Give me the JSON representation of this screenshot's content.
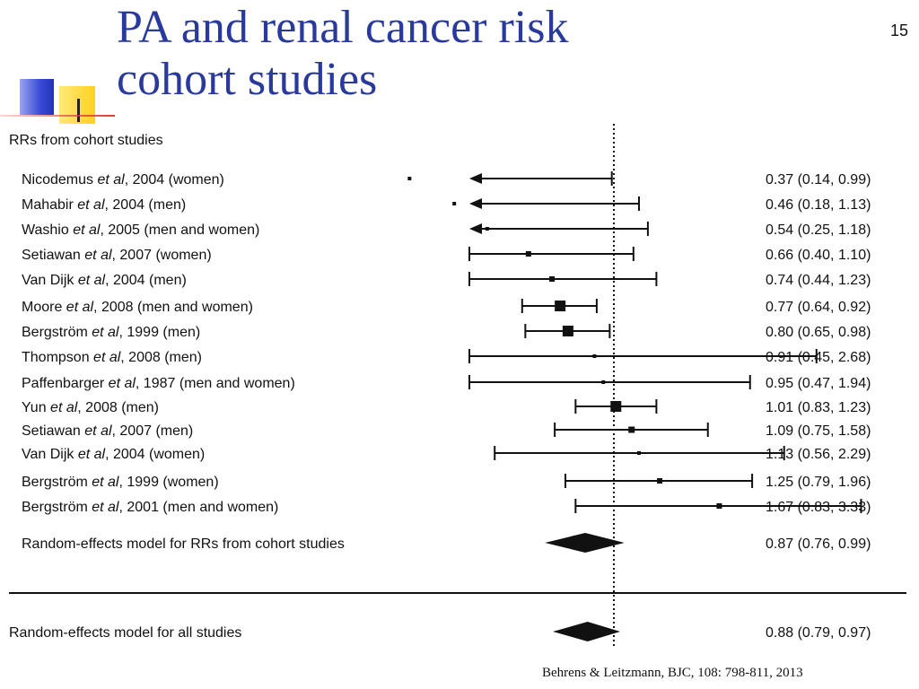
{
  "slide": {
    "title_line1": "PA and renal cancer risk",
    "title_line2": "cohort studies",
    "number": "15",
    "citation": "Behrens & Leitzmann, BJC, 108: 798-811, 2013"
  },
  "chart_data": {
    "type": "forest",
    "title": "RRs from cohort studies",
    "reference_line": 1.0,
    "xscale": "log",
    "studies": [
      {
        "author": "Nicodemus",
        "year": "2004",
        "group": "(women)",
        "rr": 0.37,
        "lo": 0.14,
        "hi": 0.99,
        "label": "0.37 (0.14, 0.99)",
        "weight": 1,
        "arrow_left": true
      },
      {
        "author": "Mahabir",
        "year": "2004",
        "group": "(men)",
        "rr": 0.46,
        "lo": 0.18,
        "hi": 1.13,
        "label": "0.46 (0.18, 1.13)",
        "weight": 1,
        "arrow_left": true
      },
      {
        "author": "Washio",
        "year": "2005",
        "group": "(men and women)",
        "rr": 0.54,
        "lo": 0.25,
        "hi": 1.18,
        "label": "0.54 (0.25, 1.18)",
        "weight": 1,
        "arrow_left": true
      },
      {
        "author": "Setiawan",
        "year": "2007",
        "group": "(women)",
        "rr": 0.66,
        "lo": 0.4,
        "hi": 1.1,
        "label": "0.66 (0.40, 1.10)",
        "weight": 2,
        "arrow_left": false
      },
      {
        "author": "Van Dijk",
        "year": "2004",
        "group": "(men)",
        "rr": 0.74,
        "lo": 0.44,
        "hi": 1.23,
        "label": "0.74 (0.44, 1.23)",
        "weight": 2,
        "arrow_left": false
      },
      {
        "author": "Moore",
        "year": "2008",
        "group": "(men and women)",
        "rr": 0.77,
        "lo": 0.64,
        "hi": 0.92,
        "label": "0.77 (0.64, 0.92)",
        "weight": 5,
        "arrow_left": false
      },
      {
        "author": "Bergström",
        "year": "1999",
        "group": "(men)",
        "rr": 0.8,
        "lo": 0.65,
        "hi": 0.98,
        "label": "0.80 (0.65, 0.98)",
        "weight": 5,
        "arrow_left": false
      },
      {
        "author": "Thompson",
        "year": "2008",
        "group": "(men)",
        "rr": 0.91,
        "lo": 0.45,
        "hi": 2.68,
        "label": "0.91 (0.45, 2.68)",
        "weight": 1,
        "arrow_left": false
      },
      {
        "author": "Paffenbarger",
        "year": "1987",
        "group": "(men and women)",
        "rr": 0.95,
        "lo": 0.47,
        "hi": 1.94,
        "label": "0.95 (0.47, 1.94)",
        "weight": 1,
        "arrow_left": false
      },
      {
        "author": "Yun",
        "year": "2008",
        "group": "(men)",
        "rr": 1.01,
        "lo": 0.83,
        "hi": 1.23,
        "label": "1.01 (0.83, 1.23)",
        "weight": 5,
        "arrow_left": false
      },
      {
        "author": "Setiawan",
        "year": "2007",
        "group": "(men)",
        "rr": 1.09,
        "lo": 0.75,
        "hi": 1.58,
        "label": "1.09 (0.75, 1.58)",
        "weight": 3,
        "arrow_left": false
      },
      {
        "author": "Van Dijk",
        "year": "2004",
        "group": "(women)",
        "rr": 1.13,
        "lo": 0.56,
        "hi": 2.29,
        "label": "1.13 (0.56, 2.29)",
        "weight": 1,
        "arrow_left": false
      },
      {
        "author": "Bergström",
        "year": "1999",
        "group": "(women)",
        "rr": 1.25,
        "lo": 0.79,
        "hi": 1.96,
        "label": "1.25 (0.79, 1.96)",
        "weight": 2,
        "arrow_left": false
      },
      {
        "author": "Bergström",
        "year": "2001",
        "group": "(men and women)",
        "rr": 1.67,
        "lo": 0.83,
        "hi": 3.33,
        "label": "1.67 (0.83, 3.33)",
        "weight": 2,
        "arrow_left": false
      }
    ],
    "pooled": [
      {
        "name": "Random-effects model for RRs from cohort studies",
        "rr": 0.87,
        "lo": 0.76,
        "hi": 0.99,
        "label": "0.87 (0.76, 0.99)"
      },
      {
        "name": "Random-effects model for all studies",
        "rr": 0.88,
        "lo": 0.79,
        "hi": 0.97,
        "label": "0.88 (0.79, 0.97)"
      }
    ],
    "etal_text": " et al",
    "colors": {
      "ink": "#111111",
      "title": "#2a3a9c"
    }
  }
}
